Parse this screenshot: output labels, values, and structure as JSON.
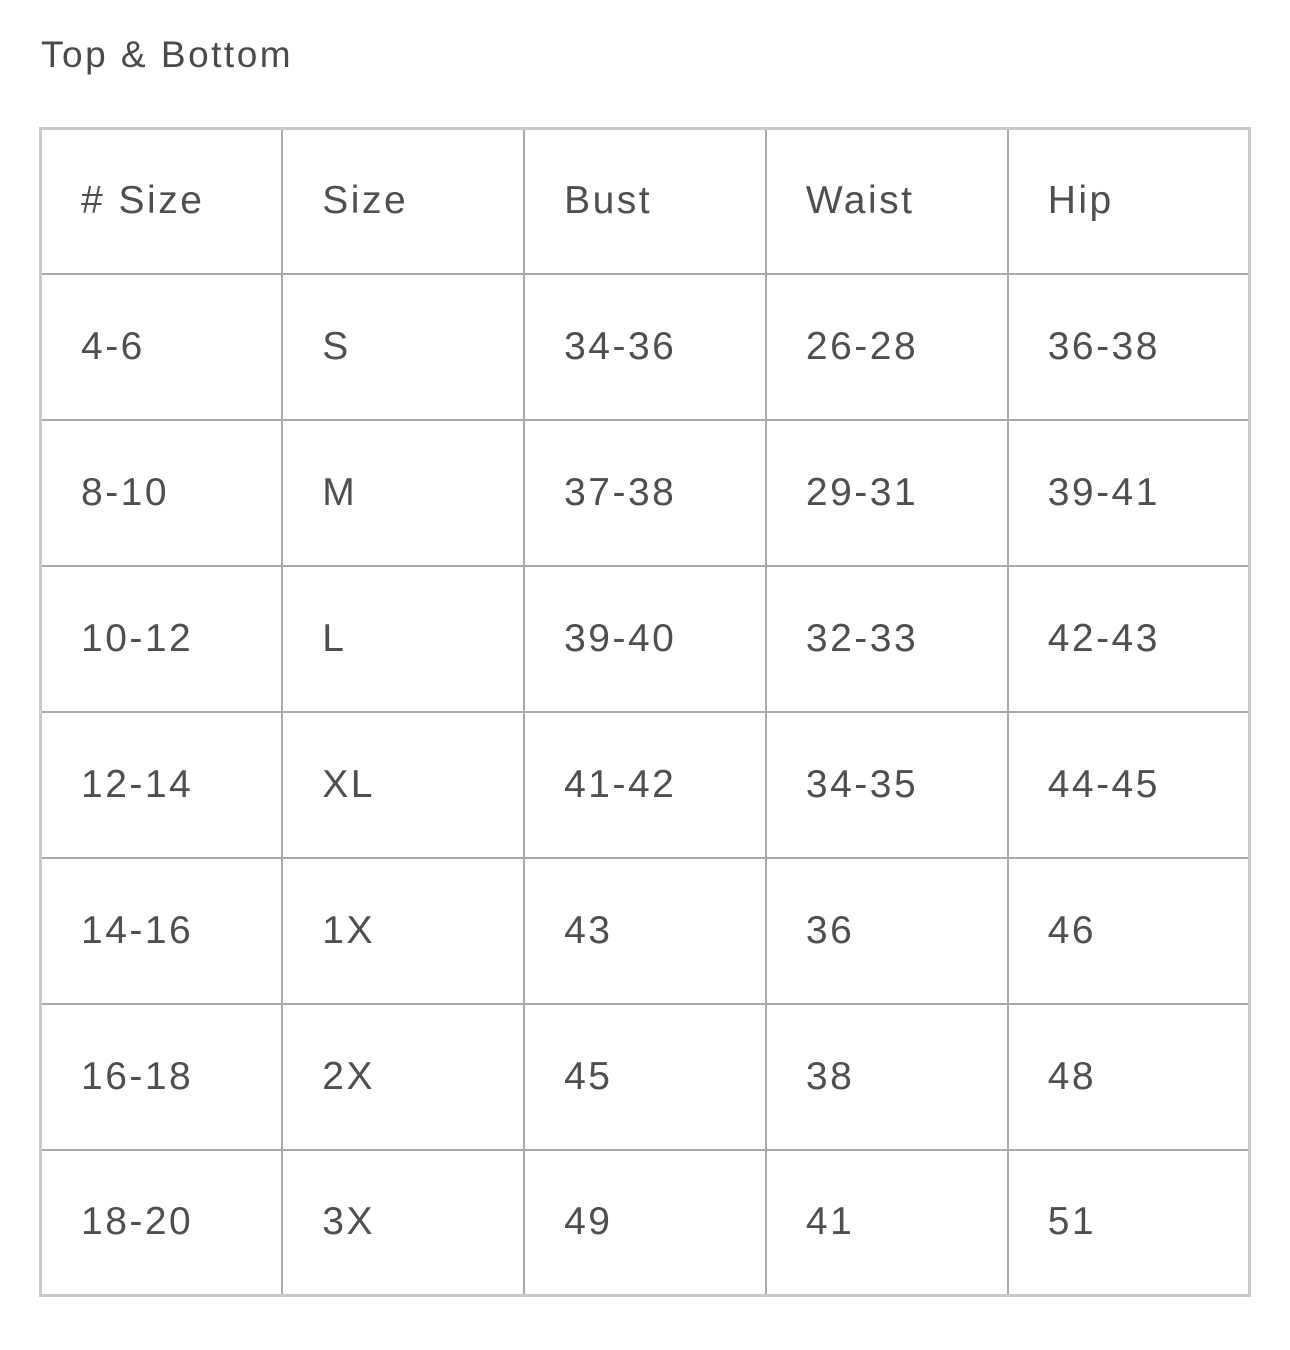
{
  "section": {
    "title": "Top & Bottom"
  },
  "table": {
    "columns": [
      "# Size",
      "Size",
      "Bust",
      "Waist",
      "Hip"
    ],
    "rows": [
      [
        "4-6",
        "S",
        "34-36",
        "26-28",
        "36-38"
      ],
      [
        "8-10",
        "M",
        "37-38",
        "29-31",
        "39-41"
      ],
      [
        "10-12",
        "L",
        "39-40",
        "32-33",
        "42-43"
      ],
      [
        "12-14",
        "XL",
        "41-42",
        "34-35",
        "44-45"
      ],
      [
        "14-16",
        "1X",
        "43",
        "36",
        "46"
      ],
      [
        "16-18",
        "2X",
        "45",
        "38",
        "48"
      ],
      [
        "18-20",
        "3X",
        "49",
        "41",
        "51"
      ]
    ]
  },
  "colors": {
    "background": "#ffffff",
    "title_text": "#4a4a4a",
    "cell_text": "#4f4f4f",
    "border_inner": "#a9a9a9",
    "border_outer": "#c9c9c9"
  }
}
